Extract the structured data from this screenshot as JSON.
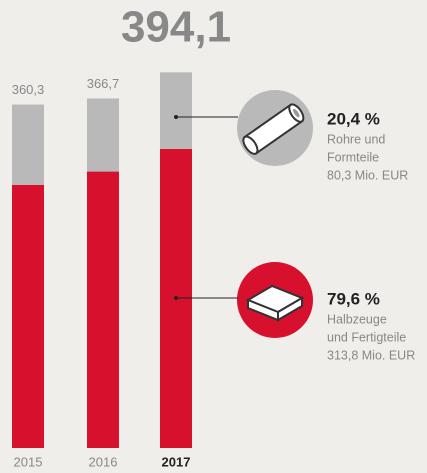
{
  "chart_data": {
    "type": "stacked-bar",
    "categories": [
      "2015",
      "2016",
      "2017"
    ],
    "total_labels": [
      "360,3",
      "366,7",
      "394,1"
    ],
    "ylim": [
      0,
      470
    ],
    "series": [
      {
        "name": "Halbzeuge und Fertigteile",
        "color": "#d7102e",
        "values": [
          276,
          290,
          313.8
        ],
        "share_label": "79,6 %",
        "detail_lines": [
          "Halbzeuge",
          "und Fertigteile"
        ],
        "amount_label": "313,8 Mio. EUR"
      },
      {
        "name": "Rohre und Formteile",
        "color": "#b9b9b9",
        "values": [
          84.3,
          76.7,
          80.3
        ],
        "share_label": "20,4 %",
        "detail_lines": [
          "Rohre und",
          "Formteile"
        ],
        "amount_label": "80,3 Mio. EUR"
      }
    ]
  }
}
